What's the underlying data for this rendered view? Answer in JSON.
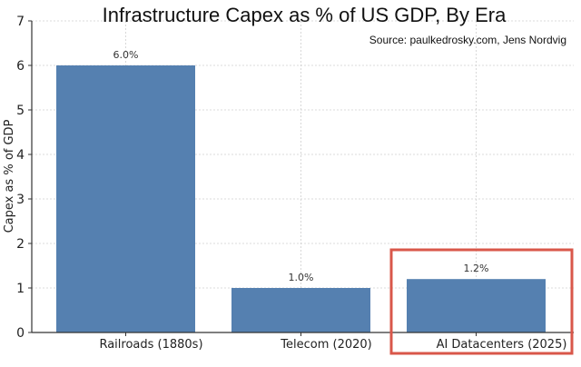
{
  "chart_data": {
    "type": "bar",
    "title": "Infrastructure Capex as % of US GDP, By Era",
    "subtitle": "Source: paulkedrosky.com, Jens Nordvig",
    "xlabel": "",
    "ylabel": "Capex as % of GDP",
    "categories": [
      "Railroads (1880s)",
      "Telecom (2020)",
      "AI Datacenters (2025)"
    ],
    "values": [
      6.0,
      1.0,
      1.2
    ],
    "data_labels": [
      "6.0%",
      "1.0%",
      "1.2%"
    ],
    "ylim": [
      0,
      7
    ],
    "yticks": [
      "0",
      "1",
      "2",
      "3",
      "4",
      "5",
      "6",
      "7"
    ],
    "grid": true,
    "bar_color": "#5580b0",
    "highlight": {
      "category": "AI Datacenters (2025)",
      "color": "#d9574a"
    }
  }
}
